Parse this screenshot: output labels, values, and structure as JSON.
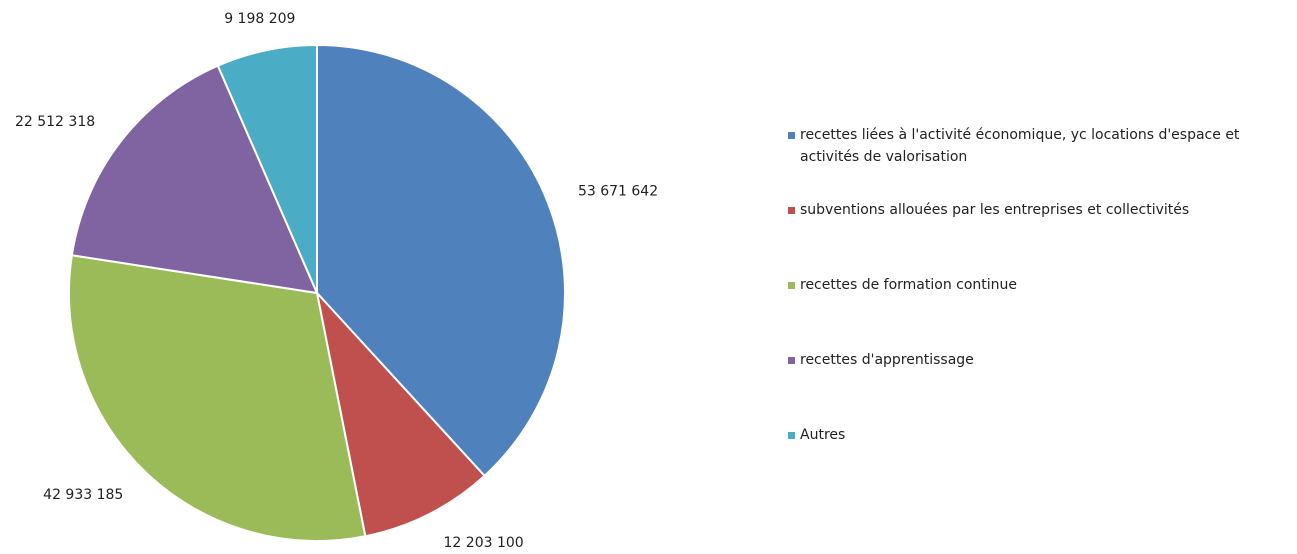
{
  "chart_data": {
    "type": "pie",
    "categories": [
      "recettes liées à l'activité économique, yc locations d'espace et activités de valorisation",
      "subventions allouées par les entreprises et collectivités",
      "recettes de formation continue",
      "recettes d'apprentissage",
      "Autres"
    ],
    "values": [
      53671642,
      12203100,
      42933185,
      22512318,
      9198209
    ],
    "value_labels": [
      "53 671 642",
      "12 203 100",
      "42 933 185",
      "22 512 318",
      "9 198 209"
    ],
    "colors": [
      "#4f81bd",
      "#c0504d",
      "#9bbb59",
      "#8064a2",
      "#4bacc6"
    ],
    "legend": "right"
  }
}
